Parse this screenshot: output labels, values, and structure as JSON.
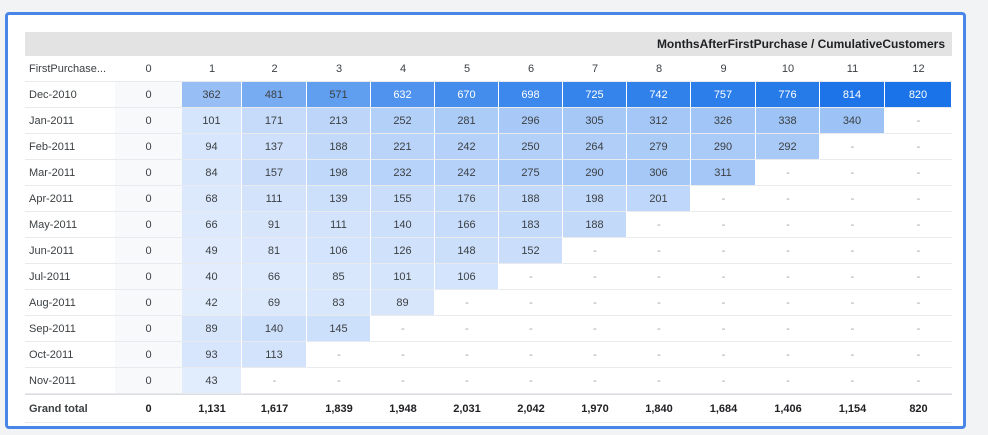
{
  "header_title": "MonthsAfterFirstPurchase / CumulativeCustomers",
  "row_dim_label": "FirstPurchase...",
  "columns": [
    "0",
    "1",
    "2",
    "3",
    "4",
    "5",
    "6",
    "7",
    "8",
    "9",
    "10",
    "11",
    "12"
  ],
  "max_value": 820,
  "rows": [
    {
      "label": "Dec-2010",
      "values": [
        0,
        362,
        481,
        571,
        632,
        670,
        698,
        725,
        742,
        757,
        776,
        814,
        820
      ]
    },
    {
      "label": "Jan-2011",
      "values": [
        0,
        101,
        171,
        213,
        252,
        281,
        296,
        305,
        312,
        326,
        338,
        340,
        null
      ]
    },
    {
      "label": "Feb-2011",
      "values": [
        0,
        94,
        137,
        188,
        221,
        242,
        250,
        264,
        279,
        290,
        292,
        null,
        null
      ]
    },
    {
      "label": "Mar-2011",
      "values": [
        0,
        84,
        157,
        198,
        232,
        242,
        275,
        290,
        306,
        311,
        null,
        null,
        null
      ]
    },
    {
      "label": "Apr-2011",
      "values": [
        0,
        68,
        111,
        139,
        155,
        176,
        188,
        198,
        201,
        null,
        null,
        null,
        null
      ]
    },
    {
      "label": "May-2011",
      "values": [
        0,
        66,
        91,
        111,
        140,
        166,
        183,
        188,
        null,
        null,
        null,
        null,
        null
      ]
    },
    {
      "label": "Jun-2011",
      "values": [
        0,
        49,
        81,
        106,
        126,
        148,
        152,
        null,
        null,
        null,
        null,
        null,
        null
      ]
    },
    {
      "label": "Jul-2011",
      "values": [
        0,
        40,
        66,
        85,
        101,
        106,
        null,
        null,
        null,
        null,
        null,
        null,
        null
      ]
    },
    {
      "label": "Aug-2011",
      "values": [
        0,
        42,
        69,
        83,
        89,
        null,
        null,
        null,
        null,
        null,
        null,
        null,
        null
      ]
    },
    {
      "label": "Sep-2011",
      "values": [
        0,
        89,
        140,
        145,
        null,
        null,
        null,
        null,
        null,
        null,
        null,
        null,
        null
      ]
    },
    {
      "label": "Oct-2011",
      "values": [
        0,
        93,
        113,
        null,
        null,
        null,
        null,
        null,
        null,
        null,
        null,
        null,
        null
      ]
    },
    {
      "label": "Nov-2011",
      "values": [
        0,
        43,
        null,
        null,
        null,
        null,
        null,
        null,
        null,
        null,
        null,
        null,
        null
      ]
    }
  ],
  "empty_cell": "-",
  "total": {
    "label": "Grand total",
    "values": [
      "0",
      "1,131",
      "1,617",
      "1,839",
      "1,948",
      "2,031",
      "2,042",
      "1,970",
      "1,840",
      "1,684",
      "1,406",
      "1,154",
      "820"
    ]
  },
  "colors": {
    "accent": "#4a86e8",
    "heat_low": "#e8f0fe",
    "heat_high": "#1a73e8"
  }
}
